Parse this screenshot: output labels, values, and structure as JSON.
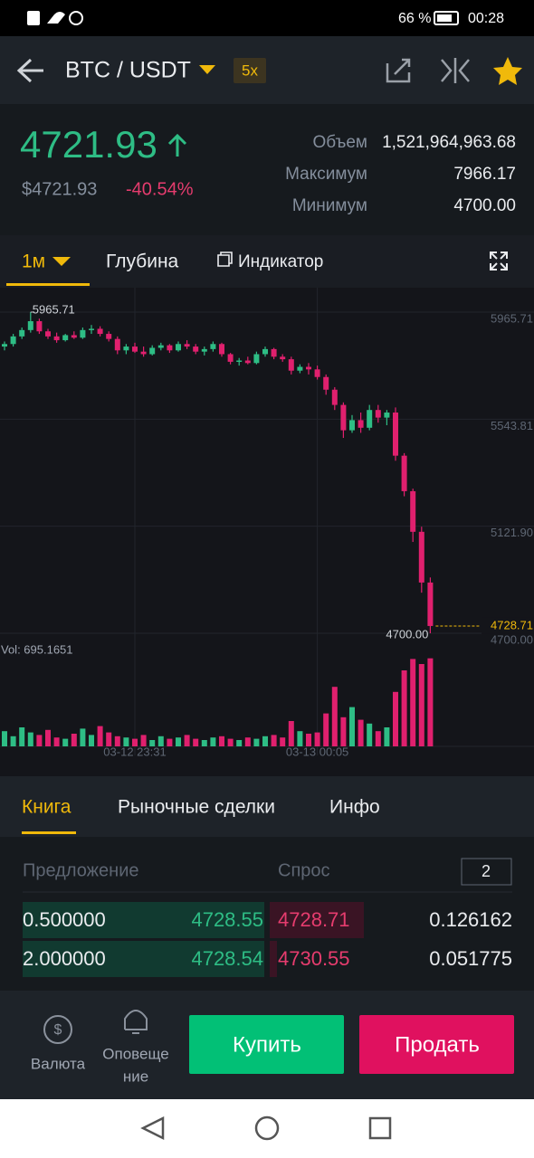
{
  "status_bar": {
    "battery": "66 %",
    "time": "00:28"
  },
  "header": {
    "pair": "BTC / USDT",
    "leverage": "5x"
  },
  "ticker": {
    "price": "4721.93",
    "price_usd": "$4721.93",
    "change": "-40.54%",
    "stats": [
      {
        "label": "Объем",
        "value": "1,521,964,963.68"
      },
      {
        "label": "Максимум",
        "value": "7966.17"
      },
      {
        "label": "Минимум",
        "value": "4700.00"
      }
    ]
  },
  "chart_tabs": {
    "interval": "1м",
    "depth": "Глубина",
    "indicator": "Индикатор"
  },
  "chart_data": {
    "type": "candlestick",
    "up_color": "#2ebd85",
    "down_color": "#e0206e",
    "ylim": [
      4700,
      6062
    ],
    "yticks": [
      5965.71,
      5543.81,
      {
        "value": 5121.9,
        "label": "5121.90"
      },
      {
        "value": 4700,
        "label": "4700.00"
      }
    ],
    "xticks": [
      {
        "value": 15,
        "label": "03-12 23:31"
      },
      {
        "value": 36,
        "label": "03-13 00:05"
      }
    ],
    "grid": true,
    "max_marker": 5965.71,
    "min_marker": {
      "value": 4700,
      "label": "4700.00"
    },
    "last_price": 4728.71,
    "vol_label": "Vol: 695.1651",
    "vol_ylim": [
      0,
      750
    ],
    "ohlc": [
      [
        5830,
        5850,
        5815,
        5840
      ],
      [
        5840,
        5880,
        5830,
        5870
      ],
      [
        5870,
        5905,
        5860,
        5895
      ],
      [
        5895,
        5966,
        5885,
        5930
      ],
      [
        5930,
        5940,
        5880,
        5890
      ],
      [
        5890,
        5900,
        5860,
        5870
      ],
      [
        5870,
        5885,
        5845,
        5855
      ],
      [
        5855,
        5880,
        5850,
        5875
      ],
      [
        5875,
        5890,
        5860,
        5865
      ],
      [
        5865,
        5905,
        5860,
        5895
      ],
      [
        5895,
        5915,
        5880,
        5900
      ],
      [
        5900,
        5910,
        5870,
        5880
      ],
      [
        5880,
        5890,
        5850,
        5860
      ],
      [
        5860,
        5870,
        5800,
        5815
      ],
      [
        5815,
        5840,
        5800,
        5830
      ],
      [
        5830,
        5845,
        5805,
        5810
      ],
      [
        5810,
        5830,
        5790,
        5800
      ],
      [
        5800,
        5835,
        5795,
        5825
      ],
      [
        5825,
        5845,
        5815,
        5835
      ],
      [
        5835,
        5840,
        5805,
        5815
      ],
      [
        5815,
        5850,
        5810,
        5840
      ],
      [
        5840,
        5855,
        5820,
        5830
      ],
      [
        5830,
        5840,
        5800,
        5810
      ],
      [
        5810,
        5830,
        5795,
        5820
      ],
      [
        5820,
        5850,
        5810,
        5840
      ],
      [
        5840,
        5845,
        5790,
        5800
      ],
      [
        5800,
        5805,
        5760,
        5770
      ],
      [
        5770,
        5785,
        5755,
        5775
      ],
      [
        5775,
        5790,
        5760,
        5765
      ],
      [
        5765,
        5810,
        5760,
        5800
      ],
      [
        5800,
        5830,
        5790,
        5820
      ],
      [
        5820,
        5825,
        5780,
        5790
      ],
      [
        5790,
        5800,
        5770,
        5780
      ],
      [
        5780,
        5790,
        5720,
        5735
      ],
      [
        5735,
        5760,
        5725,
        5750
      ],
      [
        5750,
        5765,
        5720,
        5740
      ],
      [
        5740,
        5755,
        5700,
        5710
      ],
      [
        5710,
        5720,
        5640,
        5660
      ],
      [
        5660,
        5670,
        5580,
        5600
      ],
      [
        5600,
        5610,
        5470,
        5500
      ],
      [
        5500,
        5560,
        5490,
        5540
      ],
      [
        5540,
        5570,
        5490,
        5510
      ],
      [
        5510,
        5600,
        5500,
        5580
      ],
      [
        5580,
        5600,
        5530,
        5550
      ],
      [
        5550,
        5580,
        5520,
        5570
      ],
      [
        5570,
        5590,
        5380,
        5400
      ],
      [
        5400,
        5410,
        5240,
        5260
      ],
      [
        5260,
        5270,
        5060,
        5100
      ],
      [
        5100,
        5120,
        4860,
        4900
      ],
      [
        4900,
        4920,
        4700,
        4728.71
      ]
    ],
    "volumes": [
      120,
      80,
      150,
      110,
      90,
      130,
      70,
      60,
      100,
      140,
      90,
      160,
      110,
      80,
      70,
      60,
      90,
      50,
      80,
      60,
      70,
      90,
      60,
      50,
      70,
      80,
      60,
      50,
      70,
      60,
      80,
      90,
      70,
      200,
      120,
      100,
      110,
      260,
      470,
      230,
      310,
      210,
      180,
      120,
      150,
      430,
      600,
      690,
      650,
      695.1651
    ]
  },
  "book_tabs": [
    "Книга",
    "Рыночные сделки",
    "Инфо"
  ],
  "order_book": {
    "bid_header": "Предложение",
    "ask_header": "Спрос",
    "precision": "2",
    "rows": [
      [
        "0.500000",
        "4728.55",
        "4728.71",
        "0.126162"
      ],
      [
        "2.000000",
        "4728.54",
        "4730.55",
        "0.051775"
      ]
    ]
  },
  "bottom_bar": {
    "currency": "Валюта",
    "alerts": [
      "Оповеще",
      "ние"
    ],
    "buy": "Купить",
    "sell": "Продать"
  }
}
